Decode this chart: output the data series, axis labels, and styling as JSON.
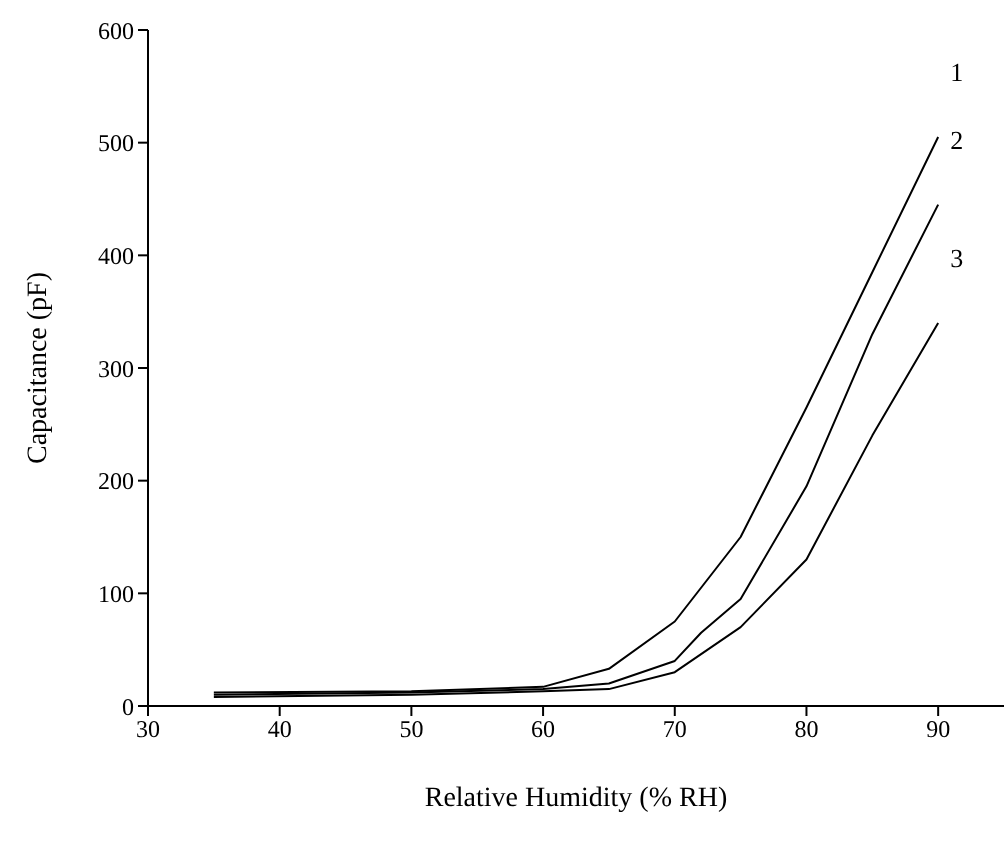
{
  "chart_data": {
    "type": "line",
    "xlabel": "Relative Humidity (% RH)",
    "ylabel": "Capacitance (pF)",
    "xlim": [
      30,
      95
    ],
    "xticks": [
      30,
      40,
      50,
      60,
      70,
      80,
      90
    ],
    "ylim": [
      0,
      600
    ],
    "yticks": [
      0,
      100,
      200,
      300,
      400,
      500,
      600
    ],
    "grid": false,
    "legend": false,
    "marker": "none",
    "line_style": "solid",
    "series": [
      {
        "name": "1",
        "color": "#000000",
        "x": [
          35,
          50,
          60,
          65,
          70,
          75,
          80,
          85,
          90
        ],
        "values": [
          12,
          13,
          17,
          33,
          75,
          150,
          265,
          385,
          505
        ]
      },
      {
        "name": "2",
        "color": "#000000",
        "x": [
          35,
          50,
          60,
          65,
          70,
          72,
          75,
          80,
          85,
          90
        ],
        "values": [
          10,
          12,
          15,
          20,
          40,
          65,
          95,
          195,
          330,
          445
        ]
      },
      {
        "name": "3",
        "color": "#000000",
        "x": [
          35,
          50,
          60,
          65,
          70,
          75,
          80,
          85,
          90
        ],
        "values": [
          8,
          10,
          13,
          15,
          30,
          70,
          130,
          240,
          340
        ]
      }
    ]
  }
}
